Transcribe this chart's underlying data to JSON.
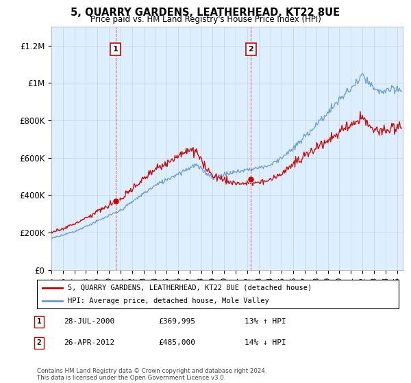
{
  "title": "5, QUARRY GARDENS, LEATHERHEAD, KT22 8UE",
  "subtitle": "Price paid vs. HM Land Registry's House Price Index (HPI)",
  "ylabel_ticks": [
    "£0",
    "£200K",
    "£400K",
    "£600K",
    "£800K",
    "£1M",
    "£1.2M"
  ],
  "ytick_vals": [
    0,
    200000,
    400000,
    600000,
    800000,
    1000000,
    1200000
  ],
  "ylim": [
    0,
    1300000
  ],
  "xlim_start": 1995.0,
  "xlim_end": 2025.5,
  "sale1_x": 2000.57,
  "sale1_y": 369995,
  "sale1_label": "1",
  "sale1_date": "28-JUL-2000",
  "sale1_price": "£369,995",
  "sale1_hpi": "13% ↑ HPI",
  "sale2_x": 2012.32,
  "sale2_y": 485000,
  "sale2_label": "2",
  "sale2_date": "26-APR-2012",
  "sale2_price": "£485,000",
  "sale2_hpi": "14% ↓ HPI",
  "legend_line1": "5, QUARRY GARDENS, LEATHERHEAD, KT22 8UE (detached house)",
  "legend_line2": "HPI: Average price, detached house, Mole Valley",
  "footer": "Contains HM Land Registry data © Crown copyright and database right 2024.\nThis data is licensed under the Open Government Licence v3.0.",
  "line_color_red": "#cc0000",
  "line_color_blue": "#6699cc",
  "shade_color": "#ddeeff",
  "plot_bg": "#ddeeff",
  "outer_bg": "#ffffff",
  "vline_color": "#dd4444",
  "grid_color": "#bbccdd"
}
